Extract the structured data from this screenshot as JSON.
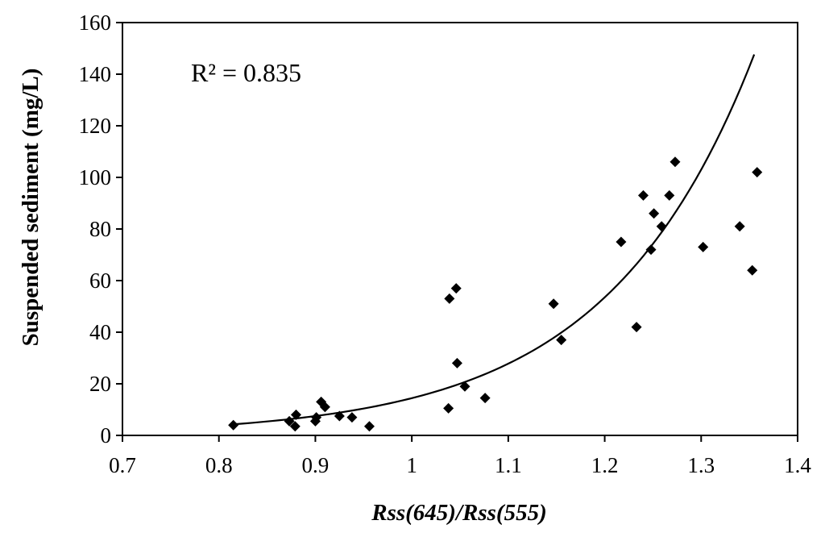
{
  "chart_data": {
    "type": "scatter",
    "xlabel": "Rss(645)/Rss(555)",
    "ylabel": "Suspended sediment (mg/L)",
    "xlim": [
      0.7,
      1.4
    ],
    "ylim": [
      0,
      160
    ],
    "x_ticks": [
      "0.7",
      "0.8",
      "0.9",
      "1",
      "1.1",
      "1.2",
      "1.3",
      "1.4"
    ],
    "y_ticks": [
      "0",
      "20",
      "40",
      "60",
      "80",
      "100",
      "120",
      "140",
      "160"
    ],
    "annotation": "R² = 0.835",
    "grid": false,
    "series": [
      {
        "marker": "diamond",
        "color": "#000000",
        "points": [
          {
            "x": 0.815,
            "y": 4
          },
          {
            "x": 0.873,
            "y": 5.5
          },
          {
            "x": 0.879,
            "y": 3.5
          },
          {
            "x": 0.88,
            "y": 8
          },
          {
            "x": 0.9,
            "y": 5.5
          },
          {
            "x": 0.901,
            "y": 7
          },
          {
            "x": 0.906,
            "y": 13
          },
          {
            "x": 0.91,
            "y": 11
          },
          {
            "x": 0.925,
            "y": 7.5
          },
          {
            "x": 0.938,
            "y": 7
          },
          {
            "x": 0.956,
            "y": 3.5
          },
          {
            "x": 1.038,
            "y": 10.5
          },
          {
            "x": 1.039,
            "y": 53
          },
          {
            "x": 1.046,
            "y": 57
          },
          {
            "x": 1.047,
            "y": 28
          },
          {
            "x": 1.055,
            "y": 19
          },
          {
            "x": 1.076,
            "y": 14.5
          },
          {
            "x": 1.147,
            "y": 51
          },
          {
            "x": 1.155,
            "y": 37
          },
          {
            "x": 1.217,
            "y": 75
          },
          {
            "x": 1.233,
            "y": 42
          },
          {
            "x": 1.24,
            "y": 93
          },
          {
            "x": 1.248,
            "y": 72
          },
          {
            "x": 1.251,
            "y": 86
          },
          {
            "x": 1.259,
            "y": 81
          },
          {
            "x": 1.267,
            "y": 93
          },
          {
            "x": 1.273,
            "y": 106
          },
          {
            "x": 1.302,
            "y": 73
          },
          {
            "x": 1.34,
            "y": 81
          },
          {
            "x": 1.353,
            "y": 64
          },
          {
            "x": 1.358,
            "y": 102
          }
        ]
      }
    ],
    "trendline": {
      "type": "exponential",
      "points": [
        {
          "x": 0.815,
          "y": 4.2
        },
        {
          "x": 0.9,
          "y": 7.4
        },
        {
          "x": 1.0,
          "y": 14.5
        },
        {
          "x": 1.1,
          "y": 28.5
        },
        {
          "x": 1.2,
          "y": 56
        },
        {
          "x": 1.3,
          "y": 110
        },
        {
          "x": 1.355,
          "y": 133
        }
      ]
    }
  }
}
